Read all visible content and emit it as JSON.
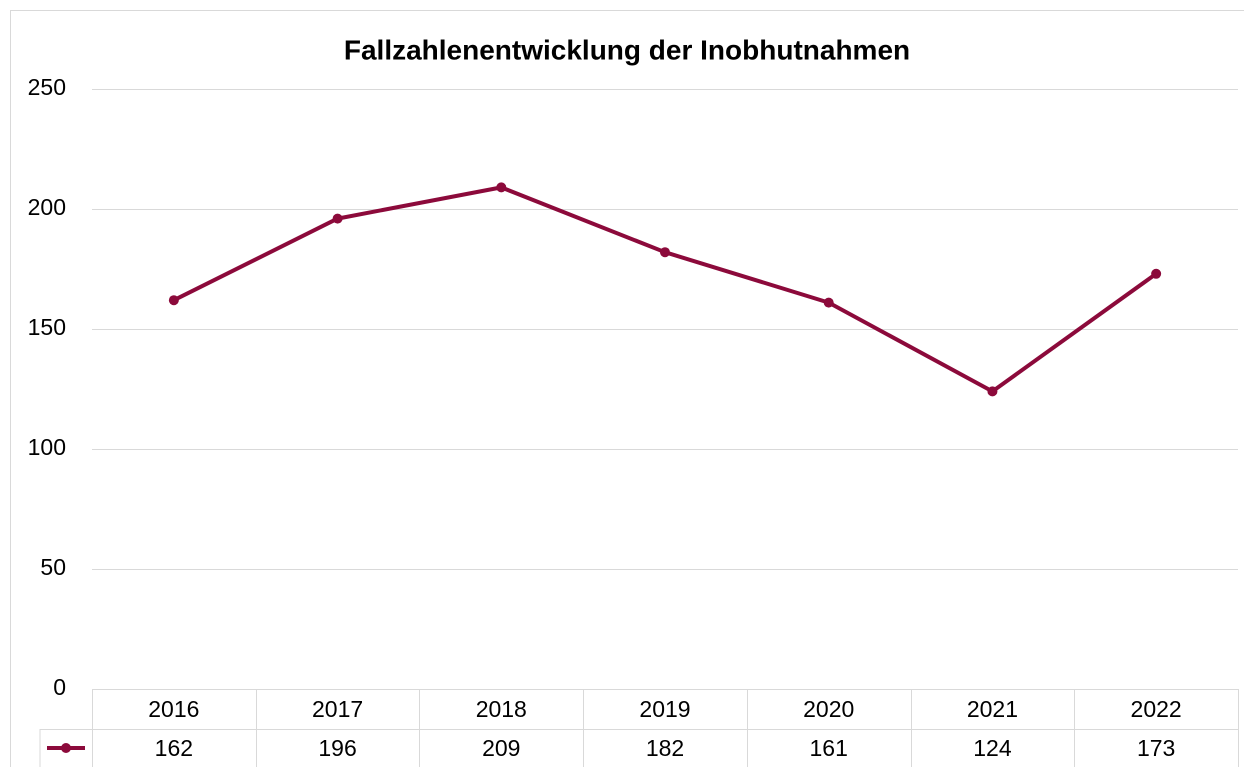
{
  "chart_data": {
    "type": "line",
    "title": "Fallzahlenentwicklung der Inobhutnahmen",
    "categories": [
      "2016",
      "2017",
      "2018",
      "2019",
      "2020",
      "2021",
      "2022"
    ],
    "values": [
      162,
      196,
      209,
      182,
      161,
      124,
      173
    ],
    "color": "#8c0a3b",
    "ylim": [
      0,
      250
    ],
    "yticks": [
      0,
      50,
      100,
      150,
      200,
      250
    ],
    "grid": true
  }
}
